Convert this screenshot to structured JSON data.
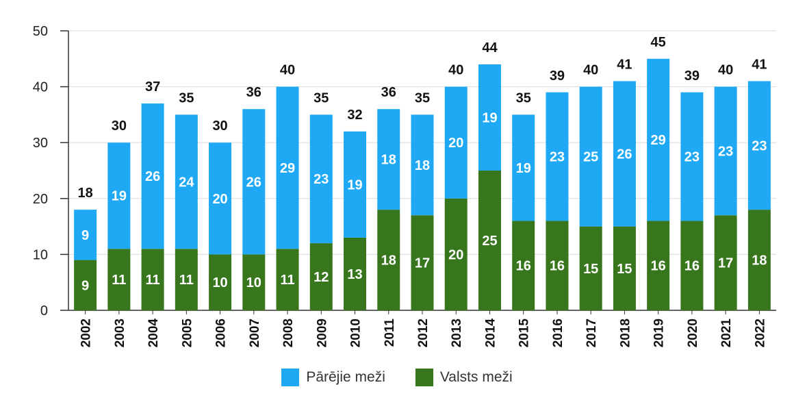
{
  "chart_data": {
    "type": "bar",
    "stacked": true,
    "categories": [
      "2002",
      "2003",
      "2004",
      "2005",
      "2006",
      "2007",
      "2008",
      "2009",
      "2010",
      "2011",
      "2012",
      "2013",
      "2014",
      "2015",
      "2016",
      "2017",
      "2018",
      "2019",
      "2020",
      "2021",
      "2022"
    ],
    "series": [
      {
        "name": "Valsts meži",
        "color": "#38761d",
        "values": [
          9,
          11,
          11,
          11,
          10,
          10,
          11,
          12,
          13,
          18,
          17,
          20,
          25,
          16,
          16,
          15,
          15,
          16,
          16,
          17,
          18
        ]
      },
      {
        "name": "Pārējie meži",
        "color": "#1fa9f4",
        "values": [
          9,
          19,
          26,
          24,
          20,
          26,
          29,
          23,
          19,
          18,
          18,
          20,
          19,
          19,
          23,
          25,
          26,
          29,
          23,
          23,
          23
        ]
      }
    ],
    "totals": [
      18,
      30,
      37,
      35,
      30,
      36,
      40,
      35,
      32,
      36,
      35,
      40,
      44,
      35,
      39,
      40,
      41,
      45,
      39,
      40,
      41
    ],
    "yticks": [
      0,
      10,
      20,
      30,
      40,
      50
    ],
    "ylim": [
      0,
      50
    ],
    "grid": true,
    "legend_position": "bottom",
    "legend_order": [
      "Pārējie meži",
      "Valsts meži"
    ]
  }
}
